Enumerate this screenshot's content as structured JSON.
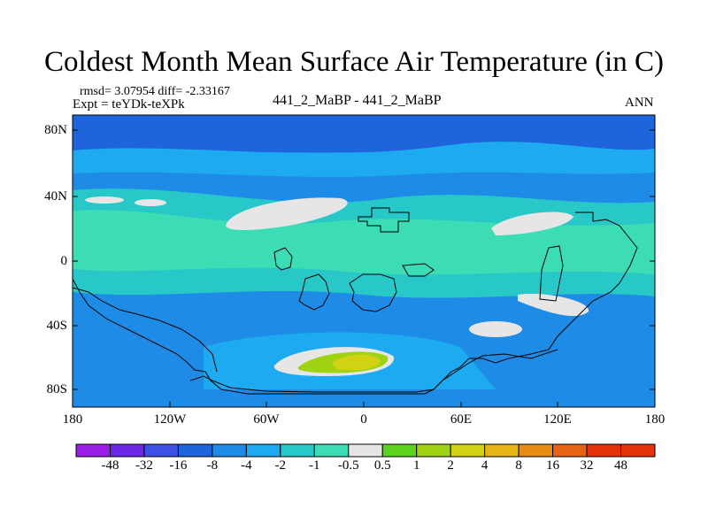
{
  "title": "Coldest Month Mean Surface Air Temperature (in C)",
  "stats": "rmsd= 3.07954 diff= -2.33167",
  "expt": "Expt = teYDk-teXPk",
  "subtitle": "441_2_MaBP - 441_2_MaBP",
  "season": "ANN",
  "lat_labels": [
    "80N",
    "40N",
    "0",
    "40S",
    "80S"
  ],
  "lon_labels": [
    "180",
    "120W",
    "60W",
    "0",
    "60E",
    "120E",
    "180"
  ],
  "colorbar": {
    "labels": [
      "-48",
      "-32",
      "-16",
      "-8",
      "-4",
      "-2",
      "-1",
      "-0.5",
      "0.5",
      "1",
      "2",
      "4",
      "8",
      "16",
      "32",
      "48"
    ],
    "colors": [
      "#9b1ee6",
      "#6a28e6",
      "#3c50e6",
      "#1e64dc",
      "#1e8ce6",
      "#1eaaf0",
      "#28c8c8",
      "#3cdcb4",
      "#e6e6e6",
      "#5ad21e",
      "#a0d214",
      "#d2d214",
      "#e6b414",
      "#e68c14",
      "#e66414",
      "#e6320a"
    ]
  },
  "map_colors": {
    "band_dark": "#1e64dc",
    "band_mid": "#1e8ce6",
    "band_light": "#1eaaf0",
    "cyan": "#28c8c8",
    "teal": "#3cdcb4",
    "white": "#e6e6e6",
    "green": "#a0d214",
    "yellow": "#d2d214"
  }
}
